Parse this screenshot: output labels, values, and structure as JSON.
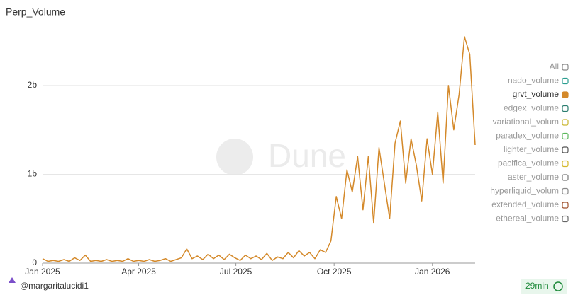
{
  "chart_data": {
    "type": "line",
    "title": "Perp_Volume",
    "watermark": "Dune",
    "x": [
      0,
      5,
      10,
      15,
      20,
      25,
      30,
      35,
      40,
      45,
      50,
      55,
      60,
      65,
      70,
      75,
      80,
      85,
      90,
      95,
      100,
      105,
      110,
      115,
      120,
      125,
      130,
      135,
      140,
      145,
      150,
      155,
      160,
      165,
      170,
      175,
      180,
      185,
      190,
      195,
      200,
      205,
      210,
      215,
      220,
      225,
      230,
      235,
      240,
      245,
      250,
      255,
      260,
      265,
      270,
      275,
      280,
      285,
      290,
      295,
      300,
      305,
      310,
      315,
      320,
      325,
      330,
      335,
      340,
      345,
      350,
      355,
      360,
      365,
      370,
      375,
      380,
      385,
      390,
      395,
      400,
      405
    ],
    "series": [
      {
        "color": "#d4892a",
        "values": [
          50000000.0,
          20000000.0,
          30000000.0,
          20000000.0,
          40000000.0,
          20000000.0,
          60000000.0,
          30000000.0,
          90000000.0,
          20000000.0,
          30000000.0,
          20000000.0,
          40000000.0,
          20000000.0,
          30000000.0,
          20000000.0,
          50000000.0,
          20000000.0,
          30000000.0,
          20000000.0,
          40000000.0,
          20000000.0,
          30000000.0,
          50000000.0,
          20000000.0,
          40000000.0,
          60000000.0,
          160000000.0,
          50000000.0,
          80000000.0,
          40000000.0,
          100000000.0,
          50000000.0,
          90000000.0,
          40000000.0,
          100000000.0,
          60000000.0,
          30000000.0,
          90000000.0,
          50000000.0,
          80000000.0,
          40000000.0,
          110000000.0,
          30000000.0,
          70000000.0,
          50000000.0,
          120000000.0,
          60000000.0,
          140000000.0,
          80000000.0,
          120000000.0,
          50000000.0,
          150000000.0,
          120000000.0,
          250000000.0,
          750000000.0,
          500000000.0,
          1050000000.0,
          800000000.0,
          1200000000.0,
          600000000.0,
          1200000000.0,
          450000000.0,
          1300000000.0,
          900000000.0,
          500000000.0,
          1350000000.0,
          1600000000.0,
          900000000.0,
          1400000000.0,
          1100000000.0,
          700000000.0,
          1400000000.0,
          1000000000.0,
          1700000000.0,
          900000000.0,
          2000000000.0,
          1500000000.0,
          1900000000.0,
          2550000000.0,
          2350000000.0,
          1330000000.0
        ]
      }
    ],
    "xlim": [
      0,
      405
    ],
    "xticks": [
      {
        "value": 0,
        "label": "Jan 2025"
      },
      {
        "value": 90,
        "label": "Apr 2025"
      },
      {
        "value": 181,
        "label": "Jul 2025"
      },
      {
        "value": 273,
        "label": "Oct 2025"
      },
      {
        "value": 365,
        "label": "Jan 2026"
      }
    ],
    "ylim": [
      0,
      2700000000.0
    ],
    "yticks": [
      0,
      {
        "value": 1000000000.0,
        "label": "1b"
      },
      {
        "value": 2000000000.0,
        "label": "2b"
      }
    ],
    "grid": true,
    "legend": [
      {
        "name": "All",
        "color": "#888888",
        "active": false
      },
      {
        "name": "nado_volume",
        "color": "#2a9d8f",
        "active": false
      },
      {
        "name": "grvt_volume",
        "color": "#d4892a",
        "active": true
      },
      {
        "name": "edgex_volume",
        "color": "#2a7d6f",
        "active": false
      },
      {
        "name": "variational_volum",
        "color": "#c9b630",
        "active": false
      },
      {
        "name": "paradex_volume",
        "color": "#5cb85c",
        "active": false
      },
      {
        "name": "lighter_volume",
        "color": "#555555",
        "active": false
      },
      {
        "name": "pacifica_volume",
        "color": "#d4b82a",
        "active": false
      },
      {
        "name": "aster_volume",
        "color": "#777777",
        "active": false
      },
      {
        "name": "hyperliquid_volum",
        "color": "#888888",
        "active": false
      },
      {
        "name": "extended_volume",
        "color": "#a0522d",
        "active": false
      },
      {
        "name": "ethereal_volume",
        "color": "#666666",
        "active": false
      }
    ]
  },
  "footer": {
    "user": "@margaritalucidi1",
    "age": "29min"
  }
}
